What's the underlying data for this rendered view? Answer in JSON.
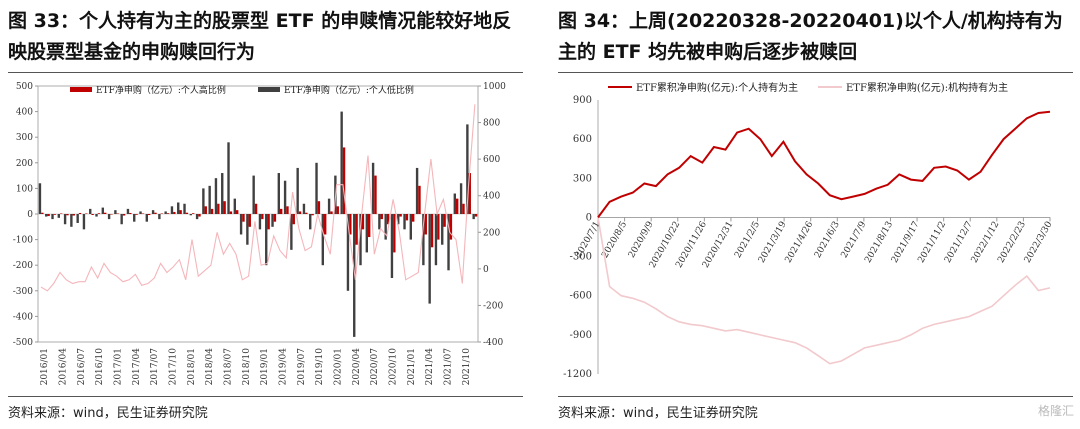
{
  "panels": [
    {
      "title": "图 33：个人持有为主的股票型 ETF 的申赎情况能较好地反映股票型基金的申购赎回行为",
      "source": "资料来源：wind，民生证券研究院"
    },
    {
      "title": "图 34：上周(20220328-20220401)以个人/机构持有为主的 ETF 均先被申购后逐步被赎回",
      "source": "资料来源：wind，民生证券研究院"
    }
  ],
  "watermark": "格隆汇",
  "colors": {
    "dark_red": "#C00000",
    "light_pink": "#F2C9CC",
    "dark_gray": "#404040",
    "pink_line": "#F4B6BB"
  },
  "chart_data": [
    {
      "type": "bar",
      "legend": [
        "ETF净申购（亿元）:个人高比例",
        "ETF净申购（亿元）:个人低比例"
      ],
      "legend_placement": "top",
      "x_tick_labels": [
        "2016/01",
        "2016/04",
        "2016/07",
        "2016/10",
        "2017/01",
        "2017/04",
        "2017/07",
        "2017/10",
        "2018/01",
        "2018/04",
        "2018/07",
        "2018/10",
        "2019/01",
        "2019/04",
        "2019/07",
        "2019/10",
        "2020/01",
        "2020/04",
        "2020/07",
        "2020/10",
        "2021/01",
        "2021/04",
        "2021/07",
        "2021/10"
      ],
      "y_left_ticks": [
        -500,
        -400,
        -300,
        -200,
        -100,
        0,
        100,
        200,
        300,
        400,
        500
      ],
      "y_left_range": [
        -500,
        500
      ],
      "y_right_ticks": [
        -400,
        -200,
        0,
        200,
        400,
        600,
        800,
        1000
      ],
      "y_right_range": [
        -400,
        1000
      ],
      "series": [
        {
          "name": "ETF净申购（亿元）:个人高比例",
          "kind": "bar",
          "color": "#C00000",
          "values": [
            5,
            -8,
            -3,
            2,
            -5,
            -6,
            4,
            2,
            -4,
            3,
            5,
            -2,
            2,
            -6,
            4,
            -3,
            2,
            -4,
            5,
            2,
            3,
            8,
            15,
            5,
            3,
            -10,
            30,
            20,
            40,
            50,
            10,
            15,
            -30,
            -50,
            40,
            -20,
            -60,
            -30,
            20,
            30,
            -40,
            10,
            5,
            -5,
            50,
            -80,
            10,
            30,
            260,
            -80,
            -120,
            -60,
            -90,
            150,
            -20,
            -40,
            -150,
            -10,
            -25,
            -30,
            110,
            -80,
            -130,
            -100,
            -50,
            -100,
            60,
            40,
            160,
            -10
          ]
        },
        {
          "name": "ETF净申购（亿元）:个人低比例",
          "kind": "bar",
          "color": "#404040",
          "values": [
            120,
            -10,
            -20,
            -15,
            -40,
            -50,
            -35,
            -60,
            20,
            -10,
            25,
            -20,
            15,
            -40,
            20,
            -30,
            10,
            -30,
            15,
            -20,
            10,
            30,
            45,
            40,
            -5,
            -20,
            100,
            110,
            140,
            160,
            280,
            60,
            -80,
            -120,
            150,
            -60,
            -200,
            -50,
            160,
            130,
            -140,
            180,
            40,
            -60,
            200,
            -200,
            60,
            150,
            400,
            -300,
            -480,
            -200,
            -150,
            200,
            -60,
            -100,
            -250,
            -40,
            -60,
            -100,
            180,
            -200,
            -350,
            -200,
            -120,
            -220,
            80,
            120,
            350,
            -20
          ]
        },
        {
          "name": "",
          "kind": "line",
          "axis": "right",
          "color": "#F4B6BB",
          "values": [
            -100,
            -120,
            -80,
            -20,
            -60,
            -80,
            -70,
            -70,
            10,
            -50,
            30,
            -20,
            -40,
            -70,
            -60,
            -30,
            -90,
            -80,
            -50,
            30,
            -20,
            10,
            50,
            -60,
            160,
            -40,
            -10,
            20,
            200,
            80,
            140,
            80,
            -60,
            -40,
            260,
            20,
            30,
            180,
            100,
            60,
            420,
            220,
            100,
            120,
            300,
            180,
            80,
            460,
            460,
            200,
            -60,
            300,
            620,
            80,
            220,
            180,
            380,
            200,
            -60,
            -40,
            -20,
            300,
            600,
            300,
            380,
            200,
            160,
            -80,
            460,
            900
          ]
        }
      ]
    },
    {
      "type": "line",
      "legend": [
        "ETF累积净申购(亿元):个人持有为主",
        "ETF累积净申购(亿元):机构持有为主"
      ],
      "legend_placement": "top",
      "x_tick_labels": [
        "2020/7/1",
        "2020/8/5",
        "2020/9/9",
        "2020/10/22",
        "2020/11/26",
        "2020/12/31",
        "2021/2/5",
        "2021/3/19",
        "2021/4/26",
        "2021/6/3",
        "2021/7/9",
        "2021/8/13",
        "2021/9/17",
        "2021/11/2",
        "2021/12/7",
        "2022/1/12",
        "2022/2/23",
        "2022/3/30"
      ],
      "y_ticks": [
        -1200,
        -900,
        -600,
        -300,
        0,
        300,
        600,
        900
      ],
      "y_range": [
        -1200,
        900
      ],
      "series": [
        {
          "name": "ETF累积净申购(亿元):个人持有为主",
          "color": "#C00000",
          "values": [
            0,
            120,
            160,
            190,
            260,
            240,
            330,
            380,
            470,
            420,
            540,
            520,
            650,
            680,
            600,
            470,
            580,
            430,
            330,
            260,
            170,
            140,
            160,
            180,
            220,
            250,
            330,
            290,
            280,
            380,
            390,
            360,
            290,
            350,
            480,
            600,
            680,
            760,
            800,
            810
          ]
        },
        {
          "name": "ETF累积净申购(亿元):机构持有为主",
          "color": "#F2C9CC",
          "values": [
            0,
            -530,
            -600,
            -620,
            -650,
            -700,
            -760,
            -800,
            -820,
            -830,
            -850,
            -870,
            -860,
            -880,
            -900,
            -920,
            -940,
            -960,
            -1000,
            -1060,
            -1120,
            -1100,
            -1050,
            -1000,
            -980,
            -960,
            -940,
            -900,
            -850,
            -820,
            -800,
            -780,
            -760,
            -720,
            -680,
            -600,
            -520,
            -450,
            -560,
            -540
          ]
        }
      ]
    }
  ]
}
